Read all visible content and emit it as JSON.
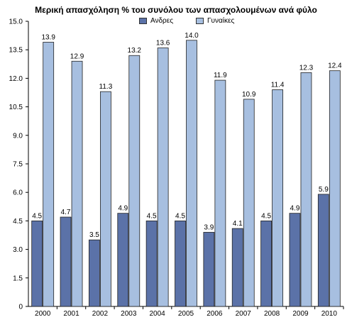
{
  "chart_data": {
    "type": "bar",
    "title": "Μερική απασχόληση % του συνόλου των απασχολουμένων ανά φύλο",
    "categories": [
      "2000",
      "2001",
      "2002",
      "2003",
      "2004",
      "2005",
      "2006",
      "2007",
      "2008",
      "2009",
      "2010"
    ],
    "series": [
      {
        "name": "Ανδρες",
        "values": [
          4.5,
          4.7,
          3.5,
          4.9,
          4.5,
          4.5,
          3.9,
          4.1,
          4.5,
          4.9,
          5.9
        ],
        "labels": [
          "4.5",
          "4.7",
          "3.5",
          "4.9",
          "4.5",
          "4.5",
          "3.9",
          "4.1",
          "4.5",
          "4.9",
          "5.9"
        ],
        "color": "#5b72a8"
      },
      {
        "name": "Γυναίκες",
        "values": [
          13.9,
          12.9,
          11.3,
          13.2,
          13.6,
          14.0,
          11.9,
          10.9,
          11.4,
          12.3,
          12.4
        ],
        "labels": [
          "13.9",
          "12.9",
          "11.3",
          "13.2",
          "13.6",
          "14.0",
          "11.9",
          "10.9",
          "11.4",
          "12.3",
          "12.4"
        ],
        "color": "#a7bfe0"
      }
    ],
    "ylim": [
      0,
      15
    ],
    "yticks": [
      0,
      1.5,
      3,
      4.5,
      6,
      7.5,
      9,
      10.5,
      12,
      13.5,
      15
    ],
    "ytick_labels": [
      "0",
      "1.5",
      "3.0",
      "4.5",
      "6.0",
      "7.5",
      "9.0",
      "10.5",
      "12.0",
      "13.5",
      "15.0"
    ],
    "xlabel": "",
    "ylabel": "",
    "grid": false,
    "legend_position": "top-center"
  }
}
